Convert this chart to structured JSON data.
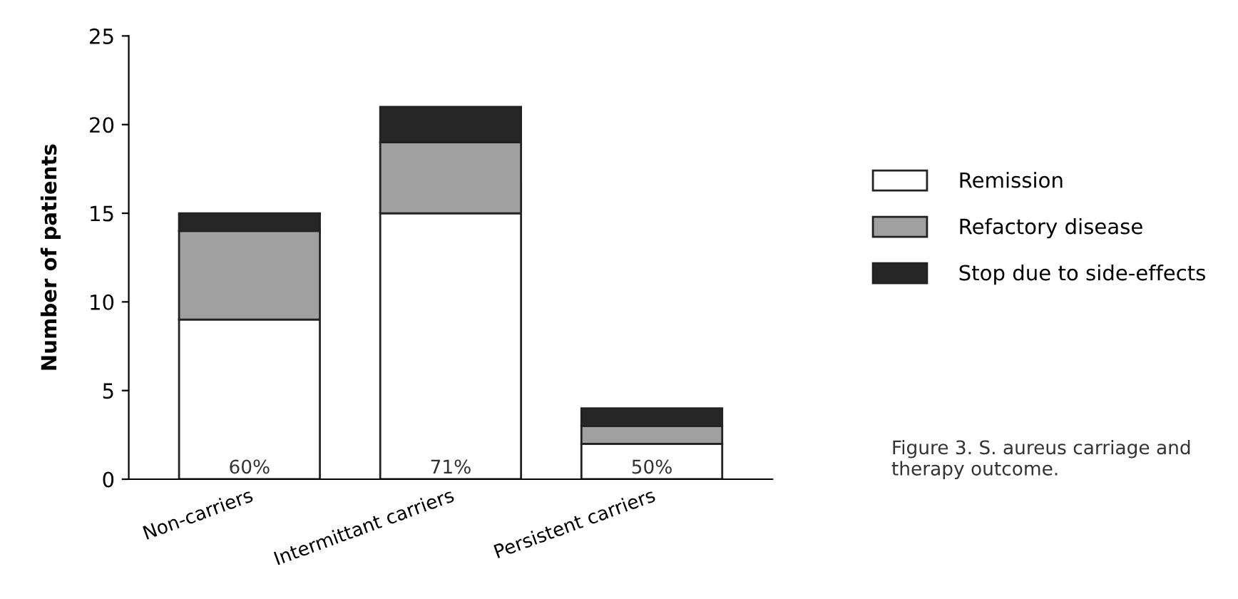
{
  "chart_data": {
    "type": "bar",
    "stacked": true,
    "ylabel": "Number of patients",
    "categories": [
      "Non-carriers",
      "Intermittant carriers",
      "Persistent carriers"
    ],
    "series": [
      {
        "name": "Remission",
        "color": "#ffffff",
        "values": [
          9,
          15,
          2
        ]
      },
      {
        "name": "Refactory disease",
        "color": "#a0a0a0",
        "values": [
          5,
          4,
          1
        ]
      },
      {
        "name": "Stop due to side-effects",
        "color": "#262626",
        "values": [
          1,
          2,
          1
        ]
      }
    ],
    "ylim": [
      0,
      25
    ],
    "yticks": [
      0,
      5,
      10,
      15,
      20,
      25
    ],
    "grid": false,
    "legend": "right",
    "annotations": [
      {
        "text": "60%",
        "x": "Non-carriers",
        "y": 0
      },
      {
        "text": "71%",
        "x": "Intermittant carriers",
        "y": 0
      },
      {
        "text": "50%",
        "x": "Persistent carriers",
        "y": 0
      },
      "Figure 3. S. aureus carriage and therapy outcome."
    ]
  }
}
